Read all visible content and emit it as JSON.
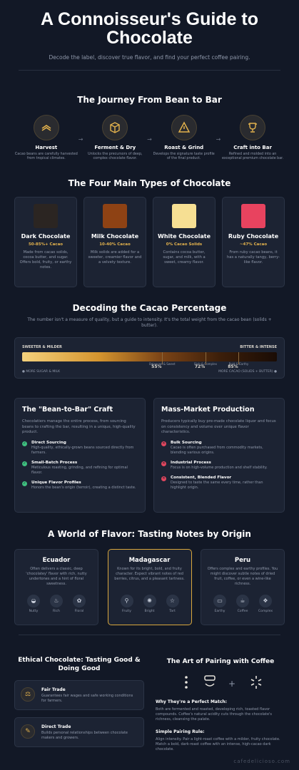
{
  "header": {
    "title": "A Connoisseur's Guide to Chocolate",
    "subtitle": "Decode the label, discover true flavor, and find your perfect coffee pairing."
  },
  "journey": {
    "title": "The Journey From Bean to Bar",
    "arrow": "→",
    "steps": [
      {
        "title": "Harvest",
        "desc": "Cacao beans are carefully harvested from tropical climates.",
        "icon": "harvest-icon"
      },
      {
        "title": "Ferment & Dry",
        "desc": "Unlocks the precursors of deep, complex chocolate flavor.",
        "icon": "box-icon"
      },
      {
        "title": "Roast & Grind",
        "desc": "Develops the signature taste profile of the final product.",
        "icon": "fire-warning-icon"
      },
      {
        "title": "Craft into Bar",
        "desc": "Refined and molded into an exceptional premium chocolate bar.",
        "icon": "trophy-icon"
      }
    ]
  },
  "types": {
    "title": "The Four Main Types of Chocolate",
    "items": [
      {
        "name": "Dark Chocolate",
        "cacao": "50-85%+ Cacao",
        "desc": "Made from cacao solids, cocoa butter, and sugar. Offers bold, fruity, or earthy notes.",
        "color": "#2b2522"
      },
      {
        "name": "Milk Chocolate",
        "cacao": "10-40% Cacao",
        "desc": "Milk solids are added for a sweeter, creamier flavor and a velvety texture.",
        "color": "#8e4214"
      },
      {
        "name": "White Chocolate",
        "cacao": "0% Cacao Solids",
        "desc": "Contains cocoa butter, sugar, and milk, with a sweet, creamy flavor.",
        "color": "#f6df93"
      },
      {
        "name": "Ruby Chocolate",
        "cacao": "~47% Cacao",
        "desc": "From ruby cacao beans, it has a naturally tangy, berry-like flavor.",
        "color": "#e8435f"
      }
    ]
  },
  "cacao": {
    "title": "Decoding the Cacao Percentage",
    "subtitle": "The number isn't a measure of quality, but a guide to intensity. It's the total weight from the cacao bean (solids + butter).",
    "left_label": "SWEETER & MILDER",
    "right_label": "BITTER & INTENSE",
    "bottom_left": "MORE SUGAR & MILK",
    "bottom_right": "MORE CACAO (SOLIDS + BUTTER)",
    "markers": [
      {
        "pct_text": "55%",
        "desc": "Balanced & Sweet",
        "value": 55
      },
      {
        "pct_text": "72%",
        "desc": "Rich & Complex",
        "value": 72
      },
      {
        "pct_text": "85%",
        "desc": "Bold & Earthy",
        "value": 85
      }
    ]
  },
  "craft": {
    "left": {
      "title": "The \"Bean-to-Bar\" Craft",
      "intro": "Chocolatiers manage the entire process, from sourcing beans to crafting the bar, resulting in a unique, high-quality product.",
      "mark": "✓",
      "points": [
        {
          "h": "Direct Sourcing",
          "b": "High-quality, ethically-grown beans sourced directly from farmers."
        },
        {
          "h": "Small-Batch Process",
          "b": "Meticulous roasting, grinding, and refining for optimal flavor."
        },
        {
          "h": "Unique Flavor Profiles",
          "b": "Honors the bean's origin (terroir), creating a distinct taste."
        }
      ]
    },
    "right": {
      "title": "Mass-Market Production",
      "intro": "Producers typically buy pre-made chocolate liquor and focus on consistency and volume over unique flavor characteristics.",
      "mark": "✕",
      "points": [
        {
          "h": "Bulk Sourcing",
          "b": "Cacao is often purchased from commodity markets, blending various origins."
        },
        {
          "h": "Industrial Process",
          "b": "Focus is on high-volume production and shelf stability."
        },
        {
          "h": "Consistent, Blended Flavor",
          "b": "Designed to taste the same every time, rather than highlight origin."
        }
      ]
    }
  },
  "flavor": {
    "title": "A World of Flavor: Tasting Notes by Origin",
    "origins": [
      {
        "name": "Ecuador",
        "desc": "Often delivers a classic, deep 'chocolatey' flavor with rich, nutty undertones and a hint of floral sweetness.",
        "notes": [
          {
            "label": "Nutty",
            "icon": "nut-icon",
            "glyph": "◒"
          },
          {
            "label": "Rich",
            "icon": "drop-icon",
            "glyph": "♨"
          },
          {
            "label": "Floral",
            "icon": "flower-icon",
            "glyph": "✿"
          }
        ]
      },
      {
        "name": "Madagascar",
        "desc": "Known for its bright, bold, and fruity character. Expect vibrant notes of red berries, citrus, and a pleasant tartness.",
        "notes": [
          {
            "label": "Fruity",
            "icon": "fruit-icon",
            "glyph": "⚲"
          },
          {
            "label": "Bright",
            "icon": "sun-icon",
            "glyph": "✺"
          },
          {
            "label": "Tart",
            "icon": "star-icon",
            "glyph": "☆"
          }
        ]
      },
      {
        "name": "Peru",
        "desc": "Offers complex and earthy profiles. You might discover subtle notes of dried fruit, coffee, or even a wine-like richness.",
        "notes": [
          {
            "label": "Earthy",
            "icon": "earth-icon",
            "glyph": "▭"
          },
          {
            "label": "Coffee",
            "icon": "coffee-icon",
            "glyph": "☕"
          },
          {
            "label": "Complex",
            "icon": "layers-icon",
            "glyph": "❖"
          }
        ]
      }
    ]
  },
  "ethical": {
    "title": "Ethical Chocolate: Tasting Good & Doing Good",
    "items": [
      {
        "h": "Fair Trade",
        "b": "Guarantees fair wages and safe working conditions for farmers.",
        "icon": "scale-icon",
        "glyph": "⚖"
      },
      {
        "h": "Direct Trade",
        "b": "Builds personal relationships between chocolate makers and growers.",
        "icon": "handshake-icon",
        "glyph": "✎"
      }
    ]
  },
  "pairing": {
    "title": "The Art of Pairing with Coffee",
    "plus": "+",
    "match_h": "Why They're a Perfect Match:",
    "match_b": "Both are fermented and roasted, developing rich, toasted flavor compounds. Coffee's natural acidity cuts through the chocolate's richness, cleansing the palate.",
    "rule_h": "Simple Pairing Rule:",
    "rule_b": "Align intensity. Pair a light-roast coffee with a milder, fruity chocolate. Match a bold, dark-roast coffee with an intense, high-cacao dark chocolate."
  },
  "watermark": "cafedelicioso.com"
}
